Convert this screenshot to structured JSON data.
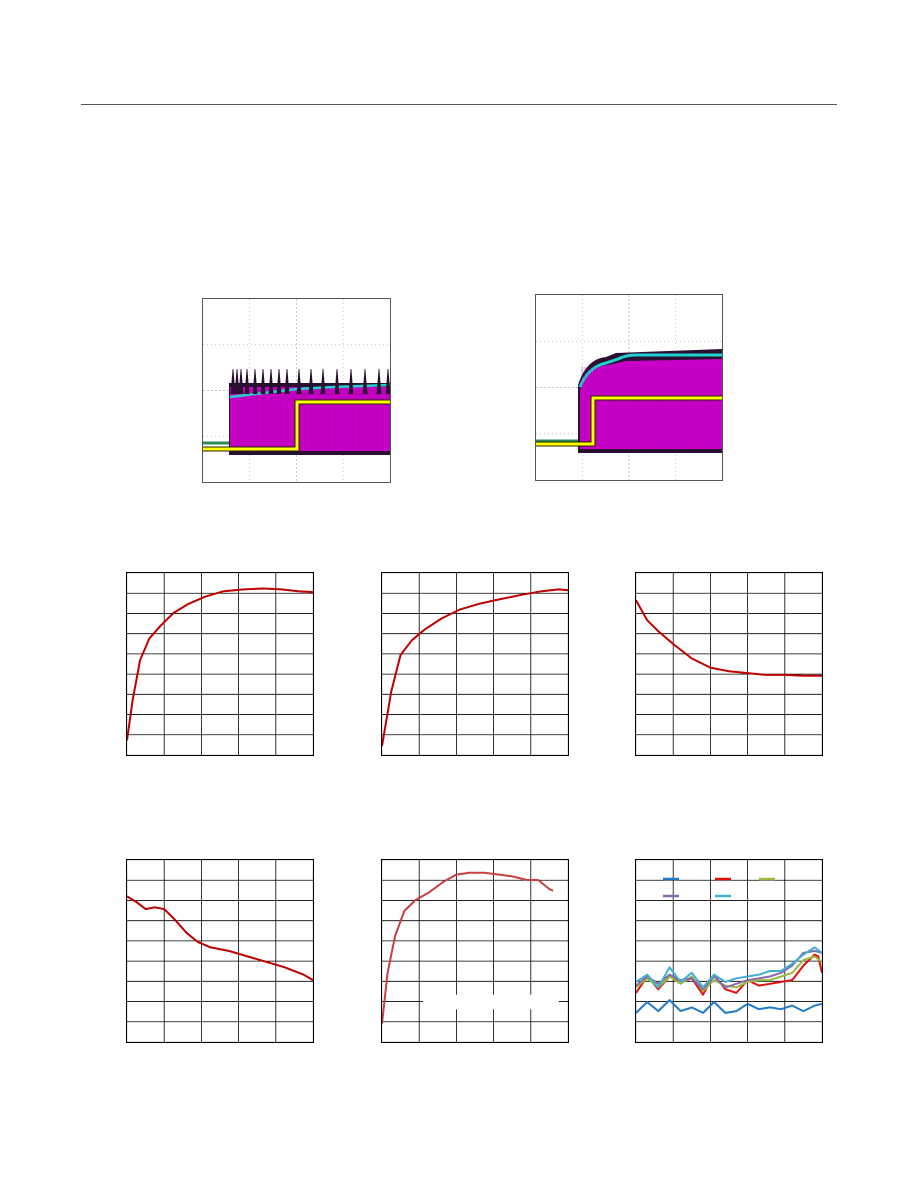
{
  "colors": {
    "magenta": "#c800c8",
    "magenta_dark": "#a000a0",
    "cyan": "#20d0d0",
    "yellow": "#ffff00",
    "green": "#2e8b57",
    "trace_dark": "#2a1030",
    "plot_red": "#c00000",
    "grid": "#000000",
    "scope_grid": "#b4b4b4"
  },
  "scopes": [
    {
      "id": "startup-scope-1",
      "description_icon": "oscilloscope-capture-icon",
      "bursting": true
    },
    {
      "id": "startup-scope-2",
      "description_icon": "oscilloscope-capture-icon",
      "bursting": false
    }
  ],
  "chart_data": [
    {
      "type": "line",
      "title": "",
      "xlabel": "",
      "ylabel": "",
      "xlim": [
        0,
        10
      ],
      "ylim": [
        0,
        10
      ],
      "grid": true,
      "series": [
        {
          "color": "#c00000",
          "x": [
            0,
            0.3,
            0.7,
            1.2,
            1.8,
            2.5,
            3.3,
            4.2,
            5.2,
            6.3,
            7.3,
            8.3,
            9.2,
            10
          ],
          "y": [
            0.8,
            3.0,
            5.2,
            6.4,
            7.1,
            7.8,
            8.3,
            8.7,
            9.0,
            9.1,
            9.15,
            9.1,
            9.0,
            8.95
          ]
        }
      ]
    },
    {
      "type": "line",
      "title": "",
      "xlabel": "",
      "ylabel": "",
      "xlim": [
        0,
        10
      ],
      "ylim": [
        0,
        10
      ],
      "grid": true,
      "series": [
        {
          "color": "#c00000",
          "x": [
            0,
            0.5,
            1.0,
            1.6,
            2.3,
            3.2,
            4.2,
            5.2,
            6.3,
            7.5,
            8.6,
            9.5,
            10
          ],
          "y": [
            0.5,
            3.5,
            5.5,
            6.3,
            6.9,
            7.5,
            8.0,
            8.3,
            8.55,
            8.8,
            9.0,
            9.1,
            9.05
          ]
        }
      ]
    },
    {
      "type": "line",
      "title": "",
      "xlabel": "",
      "ylabel": "",
      "xlim": [
        0,
        10
      ],
      "ylim": [
        0,
        10
      ],
      "grid": true,
      "series": [
        {
          "color": "#c00000",
          "x": [
            0,
            0.6,
            1.2,
            2.0,
            3.0,
            4.0,
            5.0,
            6.0,
            7.0,
            8.0,
            9.0,
            10
          ],
          "y": [
            8.5,
            7.4,
            6.8,
            6.1,
            5.3,
            4.8,
            4.6,
            4.5,
            4.4,
            4.4,
            4.35,
            4.35
          ]
        }
      ]
    },
    {
      "type": "line",
      "title": "",
      "xlabel": "",
      "ylabel": "",
      "xlim": [
        0,
        10
      ],
      "ylim": [
        0,
        10
      ],
      "grid": true,
      "series": [
        {
          "color": "#c00000",
          "x": [
            0,
            0.5,
            1.0,
            1.5,
            2.0,
            2.5,
            3.2,
            3.8,
            4.5,
            5.5,
            6.5,
            7.5,
            8.5,
            9.5,
            10
          ],
          "y": [
            8.0,
            7.7,
            7.3,
            7.4,
            7.3,
            6.8,
            6.0,
            5.5,
            5.2,
            5.0,
            4.7,
            4.4,
            4.1,
            3.7,
            3.4
          ]
        }
      ]
    },
    {
      "type": "line",
      "title": "",
      "xlabel": "",
      "ylabel": "",
      "xlim": [
        0,
        10
      ],
      "ylim": [
        0,
        10
      ],
      "grid": true,
      "series": [
        {
          "color": "#c84040",
          "x": [
            0,
            0.3,
            0.7,
            1.2,
            1.8,
            2.5,
            3.3,
            4.0,
            4.7,
            5.5,
            6.3,
            7.0,
            7.8,
            8.4,
            9.0,
            9.2
          ],
          "y": [
            1.0,
            3.8,
            5.8,
            7.2,
            7.8,
            8.2,
            8.8,
            9.2,
            9.3,
            9.3,
            9.2,
            9.1,
            8.9,
            8.9,
            8.4,
            8.3
          ]
        }
      ]
    },
    {
      "type": "line",
      "title": "",
      "xlabel": "",
      "ylabel": "",
      "xlim": [
        0,
        10
      ],
      "ylim": [
        0,
        10
      ],
      "grid": true,
      "legend": "top",
      "series": [
        {
          "color": "#1f7acc",
          "x": [
            0,
            0.6,
            1.2,
            1.8,
            2.4,
            3.0,
            3.6,
            4.2,
            4.8,
            5.4,
            6.0,
            6.6,
            7.2,
            7.8,
            8.4,
            9.0,
            9.6,
            10
          ],
          "y": [
            1.6,
            2.2,
            1.7,
            2.3,
            1.7,
            1.9,
            1.6,
            2.2,
            1.6,
            1.7,
            2.1,
            1.8,
            1.9,
            1.8,
            2.0,
            1.7,
            2.0,
            2.1
          ]
        },
        {
          "color": "#e01010",
          "x": [
            0,
            0.6,
            1.2,
            1.8,
            2.4,
            3.0,
            3.6,
            4.2,
            4.8,
            5.4,
            6.0,
            6.6,
            7.2,
            7.8,
            8.4,
            9.0,
            9.6,
            9.8,
            10
          ],
          "y": [
            2.7,
            3.6,
            2.9,
            3.6,
            3.3,
            3.5,
            2.6,
            3.7,
            2.9,
            2.7,
            3.4,
            3.1,
            3.2,
            3.3,
            3.4,
            4.2,
            4.8,
            4.7,
            3.8
          ]
        },
        {
          "color": "#9aba40",
          "x": [
            0,
            0.6,
            1.2,
            1.8,
            2.4,
            3.0,
            3.6,
            4.2,
            4.8,
            5.4,
            6.0,
            6.6,
            7.2,
            7.8,
            8.4,
            9.0,
            9.6,
            10
          ],
          "y": [
            3.0,
            3.5,
            3.0,
            3.6,
            3.2,
            3.6,
            2.8,
            3.4,
            3.1,
            3.0,
            3.3,
            3.4,
            3.4,
            3.6,
            3.8,
            4.5,
            4.7,
            4.4
          ]
        },
        {
          "color": "#8a6aa8",
          "x": [
            0,
            0.6,
            1.2,
            1.8,
            2.4,
            3.0,
            3.6,
            4.2,
            4.8,
            5.4,
            6.0,
            6.6,
            7.2,
            7.8,
            8.4,
            9.0,
            9.6,
            10
          ],
          "y": [
            3.1,
            3.6,
            3.2,
            3.7,
            3.4,
            3.5,
            2.9,
            3.6,
            3.0,
            3.2,
            3.4,
            3.5,
            3.6,
            3.8,
            4.2,
            4.9,
            5.0,
            4.9
          ]
        },
        {
          "color": "#40b0d0",
          "x": [
            0,
            0.6,
            1.2,
            1.8,
            2.4,
            3.0,
            3.6,
            4.2,
            4.8,
            5.4,
            6.0,
            6.6,
            7.2,
            7.8,
            8.4,
            9.0,
            9.6,
            10
          ],
          "y": [
            3.3,
            3.7,
            3.0,
            4.1,
            3.3,
            3.8,
            3.0,
            3.7,
            3.3,
            3.5,
            3.6,
            3.7,
            3.9,
            3.9,
            4.3,
            4.8,
            5.2,
            4.9
          ]
        }
      ]
    }
  ]
}
